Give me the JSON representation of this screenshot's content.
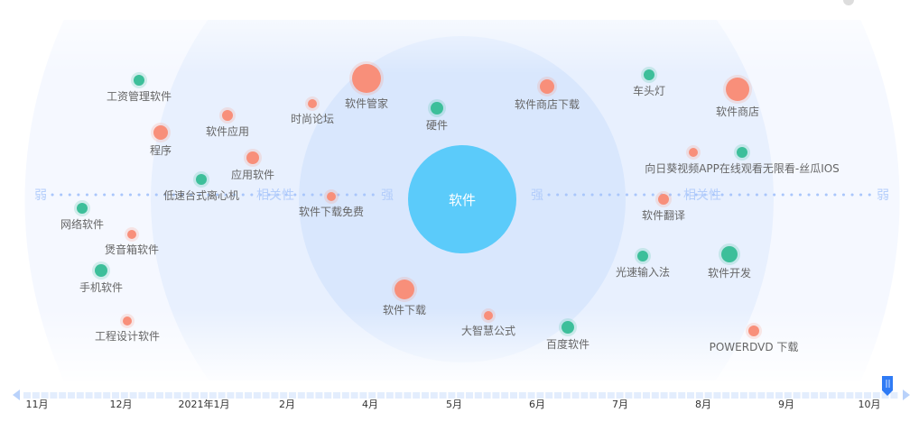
{
  "center": {
    "label": "软件",
    "color": "#5bcbfa"
  },
  "axis": {
    "left_weak": "弱",
    "left_strong": "强",
    "left_title": "相关性",
    "right_strong": "强",
    "right_title": "相关性",
    "right_weak": "弱"
  },
  "colors": {
    "green": "#3dbf9a",
    "orange": "#f88f7a"
  },
  "points": [
    {
      "label": "工资管理软件",
      "color": "green"
    },
    {
      "label": "程序",
      "color": "orange"
    },
    {
      "label": "软件应用",
      "color": "orange"
    },
    {
      "label": "应用软件",
      "color": "orange"
    },
    {
      "label": "低速台式离心机",
      "color": "green"
    },
    {
      "label": "时尚论坛",
      "color": "orange"
    },
    {
      "label": "软件管家",
      "color": "orange"
    },
    {
      "label": "硬件",
      "color": "green"
    },
    {
      "label": "软件下载免费",
      "color": "orange"
    },
    {
      "label": "网络软件",
      "color": "green"
    },
    {
      "label": "煲音箱软件",
      "color": "orange"
    },
    {
      "label": "手机软件",
      "color": "green"
    },
    {
      "label": "工程设计软件",
      "color": "orange"
    },
    {
      "label": "软件下载",
      "color": "orange"
    },
    {
      "label": "大智慧公式",
      "color": "orange"
    },
    {
      "label": "百度软件",
      "color": "green"
    },
    {
      "label": "软件商店下载",
      "color": "orange"
    },
    {
      "label": "车头灯",
      "color": "green"
    },
    {
      "label": "软件商店",
      "color": "orange"
    },
    {
      "label": "",
      "color": "orange"
    },
    {
      "label": "向日葵视频APP在线观看无限看-丝瓜IOS",
      "color": "green"
    },
    {
      "label": "软件翻译",
      "color": "orange"
    },
    {
      "label": "光速输入法",
      "color": "green"
    },
    {
      "label": "软件开发",
      "color": "green"
    },
    {
      "label": "POWERDVD 下载",
      "color": "orange"
    }
  ],
  "timeline": {
    "labels": [
      "11月",
      "12月",
      "2021年1月",
      "2月",
      "4月",
      "5月",
      "6月",
      "7月",
      "8月",
      "9月",
      "10月"
    ],
    "current": "10月"
  }
}
